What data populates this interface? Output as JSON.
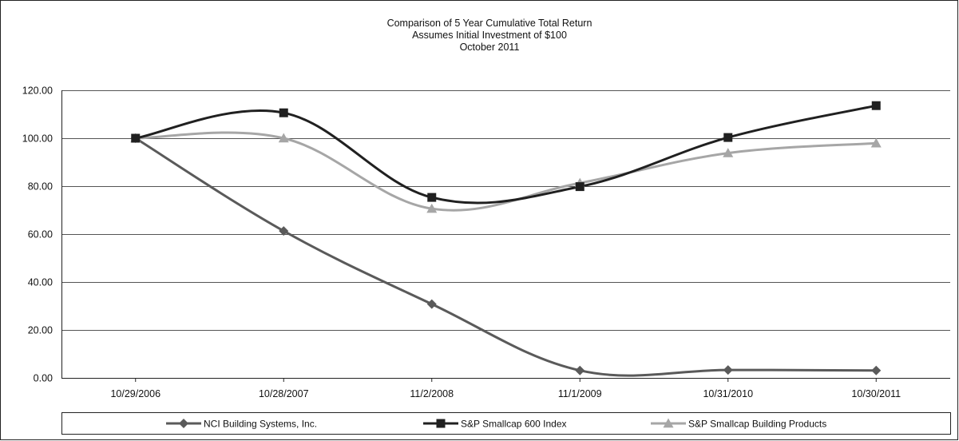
{
  "chart_data": {
    "type": "line",
    "title": [
      "Comparison of 5 Year Cumulative Total Return",
      "Assumes Initial Investment of $100",
      "October 2011"
    ],
    "categories": [
      "10/29/2006",
      "10/28/2007",
      "11/2/2008",
      "11/1/2009",
      "10/31/2010",
      "10/30/2011"
    ],
    "ylim": [
      0,
      120
    ],
    "yticks": [
      "0.00",
      "20.00",
      "40.00",
      "60.00",
      "80.00",
      "100.00",
      "120.00"
    ],
    "ytick_values": [
      0,
      20,
      40,
      60,
      80,
      100,
      120
    ],
    "grid": true,
    "legend_position": "bottom",
    "series": [
      {
        "name": "NCI Building Systems, Inc.",
        "values": [
          100,
          61.3,
          30.8,
          3.1,
          3.3,
          3.1
        ],
        "color": "#5a5a5a",
        "marker": "diamond"
      },
      {
        "name": "S&P Smallcap 600 Index",
        "values": [
          100,
          110.6,
          75.3,
          79.8,
          100.3,
          113.6
        ],
        "color": "#202020",
        "marker": "square"
      },
      {
        "name": "S&P Smallcap Building Products",
        "values": [
          100,
          100,
          70.6,
          81.3,
          93.8,
          97.9
        ],
        "color": "#a6a6a6",
        "marker": "triangle"
      }
    ]
  }
}
